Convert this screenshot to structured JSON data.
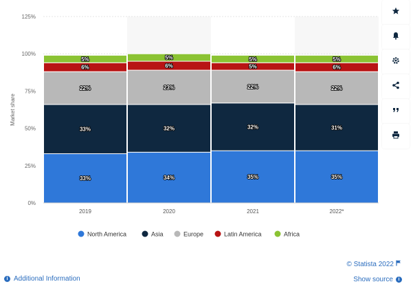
{
  "chart_data": {
    "type": "bar",
    "stacked": true,
    "categories": [
      "2019",
      "2020",
      "2021",
      "2022*"
    ],
    "series": [
      {
        "name": "North America",
        "color": "#2f78d9",
        "values": [
          33,
          34,
          35,
          35
        ]
      },
      {
        "name": "Asia",
        "color": "#0f2840",
        "values": [
          33,
          32,
          32,
          31
        ]
      },
      {
        "name": "Europe",
        "color": "#b8b8b8",
        "values": [
          22,
          23,
          22,
          22
        ]
      },
      {
        "name": "Latin America",
        "color": "#b81414",
        "values": [
          6,
          6,
          5,
          6
        ]
      },
      {
        "name": "Africa",
        "color": "#8bc333",
        "values": [
          5,
          5,
          5,
          5
        ]
      }
    ],
    "segment_labels": [
      [
        "33%",
        "34%",
        "35%",
        "35%"
      ],
      [
        "33%",
        "32%",
        "32%",
        "31%"
      ],
      [
        "22%",
        "23%",
        "22%",
        "22%"
      ],
      [
        "6%",
        "6%",
        "5%",
        "6%"
      ],
      [
        "5%",
        "5%",
        "5%",
        "5%"
      ]
    ],
    "ylabel": "Market share",
    "xlabel": "",
    "ylim": [
      0,
      125
    ],
    "yticks": [
      0,
      25,
      50,
      75,
      100,
      125
    ],
    "ytick_labels": [
      "0%",
      "25%",
      "50%",
      "75%",
      "100%",
      "125%"
    ],
    "grid": true,
    "legend_position": "bottom"
  },
  "toolbar": {
    "icons": [
      "star-icon",
      "bell-icon",
      "gear-icon",
      "share-icon",
      "quote-icon",
      "print-icon"
    ]
  },
  "footer": {
    "credit": "© Statista 2022",
    "additional_info": "Additional Information",
    "show_source": "Show source"
  }
}
